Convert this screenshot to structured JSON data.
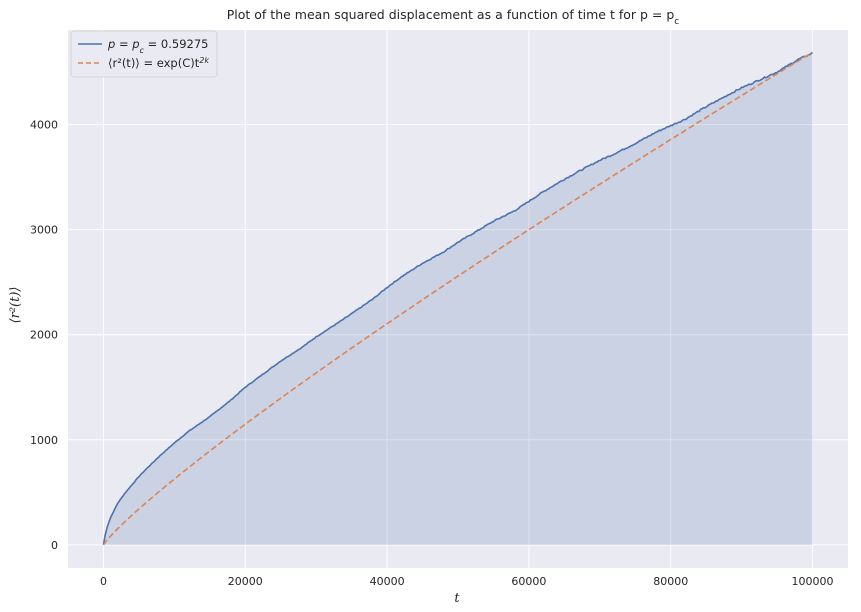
{
  "chart_data": {
    "type": "line",
    "title": "Plot of the mean squared displacement as a function of time t for p = p",
    "title_sub": "c",
    "xlabel": "t",
    "ylabel": "⟨r²(t)⟩",
    "xlim": [
      -5000,
      105000
    ],
    "ylim": [
      -220,
      4900
    ],
    "xticks": [
      0,
      20000,
      40000,
      60000,
      80000,
      100000
    ],
    "yticks": [
      0,
      1000,
      2000,
      3000,
      4000
    ],
    "grid": true,
    "legend_position": "top-left",
    "series": [
      {
        "name": "p = p_c = 0.59275",
        "legend_label": "p = p",
        "legend_label_sub": "c",
        "legend_label_tail": " = 0.59275",
        "style": "solid",
        "color": "#4c72b0",
        "fill": true,
        "fill_color": "#4c72b0",
        "x": [
          0,
          100,
          500,
          1000,
          2000,
          3000,
          4000,
          5000,
          6000,
          8000,
          10000,
          12000,
          15000,
          18000,
          20000,
          22000,
          25000,
          28000,
          30000,
          33000,
          35000,
          38000,
          40000,
          42000,
          45000,
          48000,
          50000,
          52000,
          55000,
          58000,
          60000,
          62000,
          65000,
          68000,
          70000,
          72000,
          75000,
          78000,
          80000,
          82000,
          85000,
          88000,
          90000,
          92000,
          95000,
          98000,
          100000
        ],
        "values": [
          0,
          50,
          165,
          260,
          395,
          490,
          570,
          650,
          720,
          850,
          970,
          1080,
          1220,
          1380,
          1500,
          1600,
          1750,
          1880,
          1980,
          2110,
          2200,
          2340,
          2450,
          2550,
          2680,
          2790,
          2880,
          2960,
          3080,
          3180,
          3270,
          3360,
          3480,
          3590,
          3660,
          3720,
          3820,
          3930,
          3990,
          4050,
          4170,
          4280,
          4350,
          4410,
          4500,
          4620,
          4680
        ]
      },
      {
        "name": "⟨r²(t)⟩ = exp(C) t^(2k)",
        "legend_label": "⟨r²(t)⟩ = exp(C)t",
        "legend_label_sup": "2k",
        "style": "dashed",
        "color": "#dd8452",
        "fill": false,
        "fit": {
          "A": 0.2,
          "exponent": 0.874
        }
      }
    ]
  }
}
